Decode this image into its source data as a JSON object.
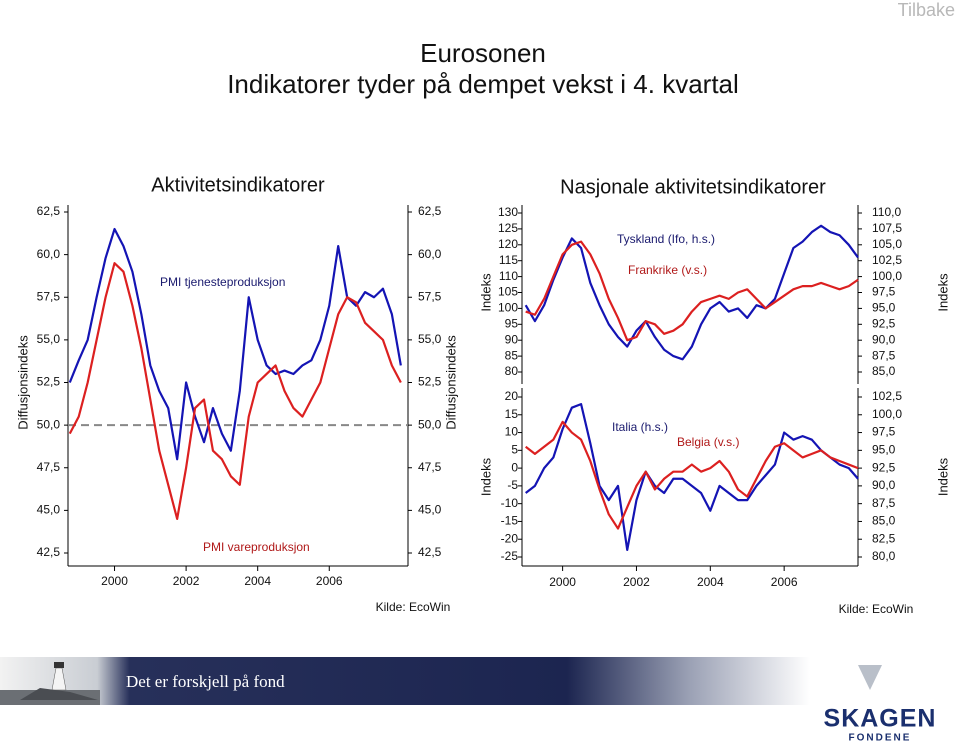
{
  "header": {
    "back_link": "Tilbake",
    "title_line1": "Eurosonen",
    "title_line2": "Indikatorer tyder på dempet vekst i 4. kvartal"
  },
  "chart_data": [
    {
      "type": "line",
      "title": "Aktivitetsindikatorer",
      "ylabel": "Diffusjonsindeks",
      "y2label": "Diffusjonsindeks",
      "x": [
        1998.75,
        1999,
        1999.25,
        1999.5,
        1999.75,
        2000,
        2000.25,
        2000.5,
        2000.75,
        2001,
        2001.25,
        2001.5,
        2001.75,
        2002,
        2002.25,
        2002.5,
        2002.75,
        2003,
        2003.25,
        2003.5,
        2003.75,
        2004,
        2004.25,
        2004.5,
        2004.75,
        2005,
        2005.25,
        2005.5,
        2005.75,
        2006,
        2006.25,
        2006.5,
        2006.75,
        2007,
        2007.25,
        2007.5,
        2007.75,
        2008
      ],
      "series": [
        {
          "name": "PMI tjenesteproduksjon",
          "color": "#1414b4",
          "values": [
            52.5,
            53.8,
            55.0,
            57.5,
            59.8,
            61.5,
            60.5,
            59.0,
            56.5,
            53.5,
            52.0,
            51.0,
            48.0,
            52.5,
            50.5,
            49.0,
            51.0,
            49.5,
            48.5,
            52.0,
            57.5,
            55.0,
            53.5,
            53.0,
            53.2,
            53.0,
            53.5,
            53.8,
            55.0,
            57.0,
            60.5,
            57.5,
            57.0,
            57.8,
            57.5,
            58.0,
            56.5,
            53.5
          ]
        },
        {
          "name": "PMI vareproduksjon",
          "color": "#dc2020",
          "values": [
            49.5,
            50.5,
            52.5,
            55.0,
            57.5,
            59.5,
            59.0,
            57.0,
            54.5,
            51.5,
            48.5,
            46.5,
            44.5,
            47.5,
            51.0,
            51.5,
            48.5,
            48.0,
            47.0,
            46.5,
            50.5,
            52.5,
            53.0,
            53.5,
            52.0,
            51.0,
            50.5,
            51.5,
            52.5,
            54.5,
            56.5,
            57.5,
            57.2,
            56.0,
            55.5,
            55.0,
            53.5,
            52.5
          ]
        }
      ],
      "xlim": [
        1998.7,
        2008.2
      ],
      "xticks": [
        2000,
        2002,
        2004,
        2006
      ],
      "ylim": [
        42.5,
        62.5
      ],
      "yticks": [
        {
          "value": 42.5,
          "label": "42,5"
        },
        {
          "value": 45,
          "label": "45,0"
        },
        {
          "value": 47.5,
          "label": "47,5"
        },
        {
          "value": 50,
          "label": "50,0"
        },
        {
          "value": 52.5,
          "label": "52,5"
        },
        {
          "value": 55,
          "label": "55,0"
        },
        {
          "value": 57.5,
          "label": "57,5"
        },
        {
          "value": 60,
          "label": "60,0"
        },
        {
          "value": 62.5,
          "label": "62,5"
        }
      ],
      "y2lim": [
        42.5,
        62.5
      ],
      "y2ticks": [
        {
          "value": 42.5,
          "label": "42,5"
        },
        {
          "value": 45,
          "label": "45,0"
        },
        {
          "value": 47.5,
          "label": "47,5"
        },
        {
          "value": 50,
          "label": "50,0"
        },
        {
          "value": 52.5,
          "label": "52,5"
        },
        {
          "value": 55,
          "label": "55,0"
        },
        {
          "value": 57.5,
          "label": "57,5"
        },
        {
          "value": 60,
          "label": "60,0"
        },
        {
          "value": 62.5,
          "label": "62,5"
        }
      ],
      "reference_line": 50,
      "source": "Kilde: EcoWin"
    },
    {
      "type": "line",
      "title": "Nasjonale aktivitetsindikatorer",
      "ylabel": "Indeks",
      "y2label": "Indeks",
      "x": [
        1999,
        1999.25,
        1999.5,
        1999.75,
        2000,
        2000.25,
        2000.5,
        2000.75,
        2001,
        2001.25,
        2001.5,
        2001.75,
        2002,
        2002.25,
        2002.5,
        2002.75,
        2003,
        2003.25,
        2003.5,
        2003.75,
        2004,
        2004.25,
        2004.5,
        2004.75,
        2005,
        2005.25,
        2005.5,
        2005.75,
        2006,
        2006.25,
        2006.5,
        2006.75,
        2007,
        2007.25,
        2007.5,
        2007.75,
        2008
      ],
      "series": [
        {
          "name": "Tyskland (Ifo, h.s.)",
          "color": "#1414b4",
          "axis": "y2",
          "values": [
            95.5,
            93.0,
            95.5,
            99.5,
            103.0,
            106.0,
            104.5,
            99.0,
            95.5,
            92.5,
            90.5,
            89.0,
            91.5,
            93.0,
            90.5,
            88.5,
            87.5,
            87.0,
            89.0,
            92.5,
            95.0,
            96.0,
            94.5,
            95.0,
            93.5,
            95.5,
            95.0,
            96.5,
            100.5,
            104.5,
            105.5,
            107.0,
            108.0,
            107.0,
            106.5,
            105.0,
            103.0
          ]
        },
        {
          "name": "Frankrike (v.s.)",
          "color": "#dc2020",
          "values": [
            99,
            98,
            103,
            110,
            117,
            120,
            121,
            117,
            111,
            103,
            97,
            90,
            91,
            96,
            95,
            92,
            93,
            95,
            99,
            102,
            103,
            104,
            103,
            105,
            106,
            103,
            100,
            102,
            104,
            106,
            107,
            107,
            108,
            107,
            106,
            107,
            109
          ]
        }
      ],
      "xlim": [
        1998.9,
        2008.0
      ],
      "ylim": [
        80,
        130
      ],
      "yticks": [
        80,
        85,
        90,
        95,
        100,
        105,
        110,
        115,
        120,
        125,
        130
      ],
      "y2lim": [
        85,
        110
      ],
      "y2ticks": [
        {
          "value": 85,
          "label": "85,0"
        },
        {
          "value": 87.5,
          "label": "87,5"
        },
        {
          "value": 90,
          "label": "90,0"
        },
        {
          "value": 92.5,
          "label": "92,5"
        },
        {
          "value": 95,
          "label": "95,0"
        },
        {
          "value": 97.5,
          "label": "97,5"
        },
        {
          "value": 100,
          "label": "100,0"
        },
        {
          "value": 102.5,
          "label": "102,5"
        },
        {
          "value": 105,
          "label": "105,0"
        },
        {
          "value": 107.5,
          "label": "107,5"
        },
        {
          "value": 110,
          "label": "110,0"
        }
      ]
    },
    {
      "type": "line",
      "ylabel": "Indeks",
      "y2label": "Indeks",
      "x": [
        1999,
        1999.25,
        1999.5,
        1999.75,
        2000,
        2000.25,
        2000.5,
        2000.75,
        2001,
        2001.25,
        2001.5,
        2001.75,
        2002,
        2002.25,
        2002.5,
        2002.75,
        2003,
        2003.25,
        2003.5,
        2003.75,
        2004,
        2004.25,
        2004.5,
        2004.75,
        2005,
        2005.25,
        2005.5,
        2005.75,
        2006,
        2006.25,
        2006.5,
        2006.75,
        2007,
        2007.25,
        2007.5,
        2007.75,
        2008
      ],
      "series": [
        {
          "name": "Italia (h.s.)",
          "color": "#1414b4",
          "axis": "y2",
          "values": [
            89,
            90,
            92.5,
            94,
            98,
            101,
            101.5,
            96,
            90,
            88,
            90,
            81,
            88,
            92,
            90,
            89,
            91,
            91,
            90,
            89,
            86.5,
            90,
            89,
            88,
            88,
            90,
            91.5,
            93,
            97.5,
            96.5,
            97,
            96.5,
            95,
            94,
            93,
            92.5,
            91
          ]
        },
        {
          "name": "Belgia (v.s.)",
          "color": "#dc2020",
          "values": [
            6,
            4,
            6,
            8,
            13,
            10,
            8,
            2,
            -6,
            -13,
            -17,
            -11,
            -5,
            -1,
            -6,
            -3,
            -1,
            -1,
            1,
            -1,
            0,
            2,
            -1,
            -6,
            -8,
            -3,
            2,
            6,
            7,
            5,
            3,
            4,
            5,
            3,
            2,
            1,
            0
          ]
        }
      ],
      "xlim": [
        1998.9,
        2008.0
      ],
      "xticks": [
        2000,
        2002,
        2004,
        2006
      ],
      "ylim": [
        -25,
        20
      ],
      "yticks": [
        -25,
        -20,
        -15,
        -10,
        -5,
        0,
        5,
        10,
        15,
        20
      ],
      "y2lim": [
        80,
        102.5
      ],
      "y2ticks": [
        {
          "value": 80,
          "label": "80,0"
        },
        {
          "value": 82.5,
          "label": "82,5"
        },
        {
          "value": 85,
          "label": "85,0"
        },
        {
          "value": 87.5,
          "label": "87,5"
        },
        {
          "value": 90,
          "label": "90,0"
        },
        {
          "value": 92.5,
          "label": "92,5"
        },
        {
          "value": 95,
          "label": "95,0"
        },
        {
          "value": 97.5,
          "label": "97,5"
        },
        {
          "value": 100,
          "label": "100,0"
        },
        {
          "value": 102.5,
          "label": "102,5"
        }
      ],
      "source": "Kilde: EcoWin"
    }
  ],
  "footer": {
    "slogan": "Det er forskjell på fond",
    "logo_name": "SKAGEN",
    "logo_sub": "FONDENE"
  }
}
